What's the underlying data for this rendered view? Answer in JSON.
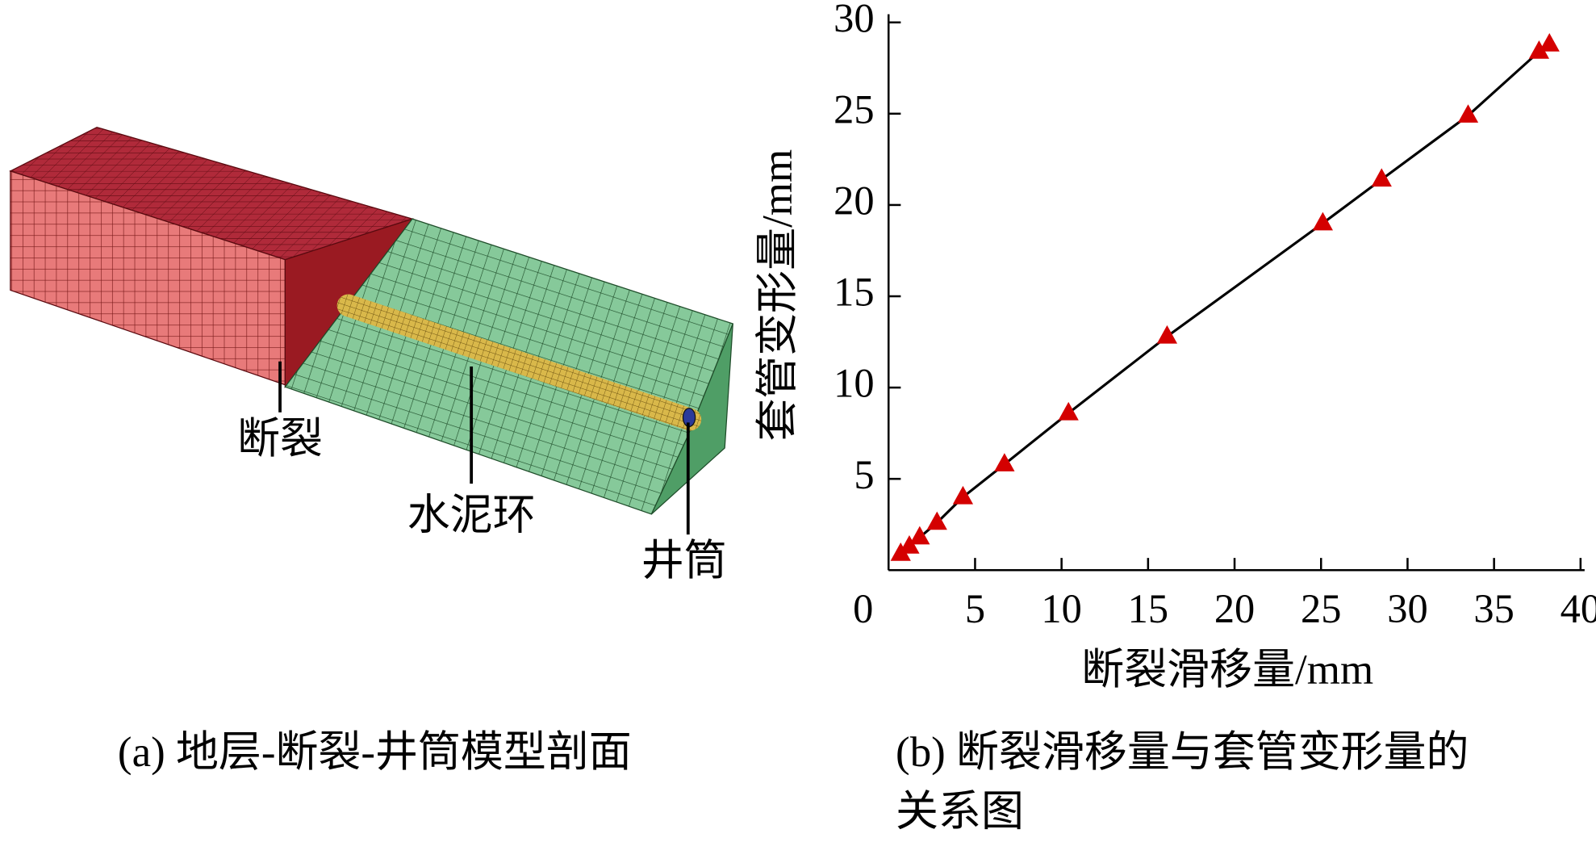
{
  "figure_a": {
    "labels": [
      "断裂",
      "水泥环",
      "井筒"
    ],
    "caption": "(a) 地层-断裂-井筒模型剖面"
  },
  "chart_data": {
    "type": "scatter",
    "caption_lines": [
      "(b) 断裂滑移量与套管变形量的",
      "关系图"
    ],
    "x_label": "断裂滑移量/mm",
    "y_label": "套管变形量/mm",
    "xlim": [
      0,
      40
    ],
    "xticks": [
      0,
      5,
      10,
      15,
      20,
      25,
      30,
      35,
      40
    ],
    "ylim": [
      0,
      30
    ],
    "yticks": [
      5,
      10,
      15,
      20,
      25,
      30
    ],
    "grid": false,
    "series": [
      {
        "color": "#d40000",
        "line_color": "#000000",
        "x": [
          0.7,
          1.2,
          1.8,
          2.8,
          4.3,
          6.7,
          10.4,
          16.1,
          25.1,
          28.5,
          33.5,
          37.6,
          38.2
        ],
        "values": [
          0.9,
          1.3,
          1.8,
          2.6,
          4.0,
          5.8,
          8.6,
          12.8,
          19.0,
          21.4,
          24.9,
          28.4,
          28.8
        ]
      }
    ]
  }
}
